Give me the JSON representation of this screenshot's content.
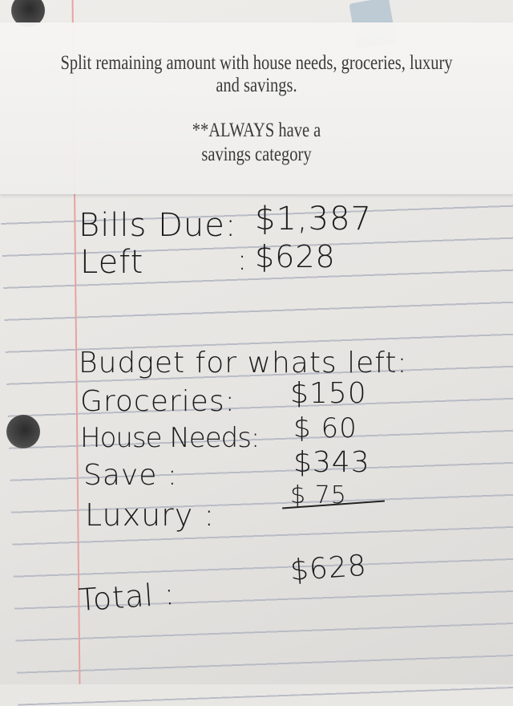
{
  "overlay": {
    "line1": "Split remaining amount with house needs, groceries, luxury",
    "line2": "and savings.",
    "note1": "**ALWAYS have a",
    "note2": "savings category"
  },
  "notes": {
    "bills_label": "Bills Due:",
    "bills_value": "$1,387",
    "left_label": "Left",
    "left_sep": ":",
    "left_value": "$628",
    "budget_heading": "Budget for whats left:",
    "items": [
      {
        "label": "Groceries:",
        "value": "$150"
      },
      {
        "label": "House Needs:",
        "value": "$ 60"
      },
      {
        "label": "Save :",
        "value": "$343"
      },
      {
        "label": "Luxury :",
        "value": "$ 75"
      }
    ],
    "total_label": "Total :",
    "total_value": "$628"
  }
}
